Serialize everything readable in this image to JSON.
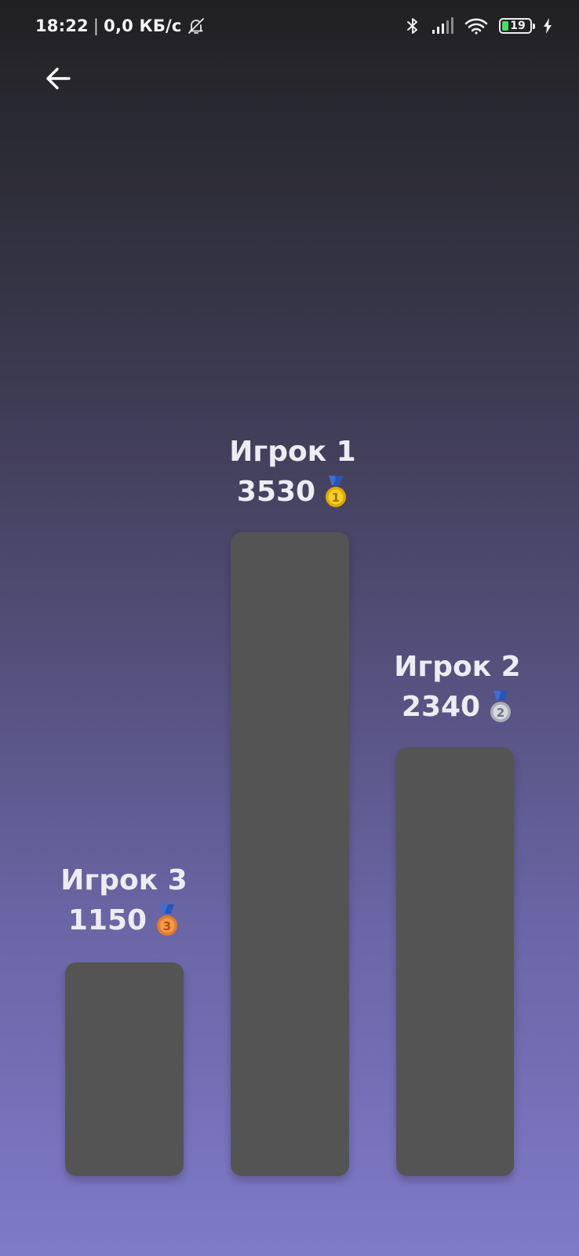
{
  "status_bar": {
    "time": "18:22",
    "separator": "|",
    "network_speed": "0,0 КБ/с",
    "battery_level": "19",
    "icons": [
      "bell-off-icon",
      "bluetooth-icon",
      "signal-icon",
      "wifi-icon",
      "battery-icon",
      "charging-icon"
    ]
  },
  "navigation": {
    "back_icon": "arrow-left-icon"
  },
  "leaderboard": {
    "players": [
      {
        "rank": 1,
        "name": "Игрок 1",
        "score": "3530",
        "medal": "gold-medal-icon",
        "medal_color": "#f5c518"
      },
      {
        "rank": 2,
        "name": "Игрок 2",
        "score": "2340",
        "medal": "silver-medal-icon",
        "medal_color": "#c9ccd4"
      },
      {
        "rank": 3,
        "name": "Игрок 3",
        "score": "1150",
        "medal": "bronze-medal-icon",
        "medal_color": "#e07a2e"
      }
    ],
    "bar_color": "#545454"
  }
}
